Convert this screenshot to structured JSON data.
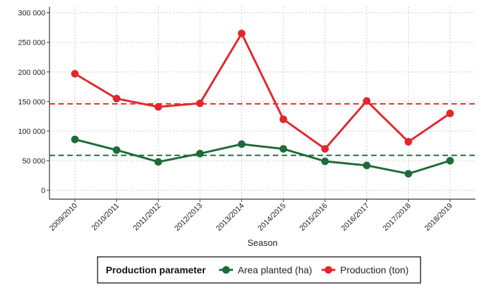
{
  "chart_data": {
    "type": "line",
    "xlabel": "Season",
    "ylabel": "",
    "categories": [
      "2009/2010",
      "2010/2011",
      "2011/2012",
      "2012/2013",
      "2013/2014",
      "2014/2015",
      "2015/2016",
      "2016/2017",
      "2017/2018",
      "2018/2019"
    ],
    "ylim": [
      -15000,
      310000
    ],
    "yticks": [
      0,
      50000,
      100000,
      150000,
      200000,
      250000,
      300000
    ],
    "ytick_labels": [
      "0",
      "50 000",
      "100 000",
      "150 000",
      "200 000",
      "250 000",
      "300 000"
    ],
    "grid": "horizontal dotted",
    "legend": {
      "title": "Production parameter",
      "placement": "bottom"
    },
    "series": [
      {
        "name": "Area planted (ha)",
        "color": "#1e6b3a",
        "values": [
          86000,
          68000,
          48000,
          62000,
          78000,
          70000,
          49000,
          42000,
          28000,
          50000
        ],
        "mean": 59000
      },
      {
        "name": "Production (ton)",
        "color": "#e3262b",
        "values": [
          197000,
          155000,
          141000,
          147000,
          265000,
          120000,
          70000,
          151000,
          82000,
          130000
        ],
        "mean": 146000
      }
    ]
  }
}
